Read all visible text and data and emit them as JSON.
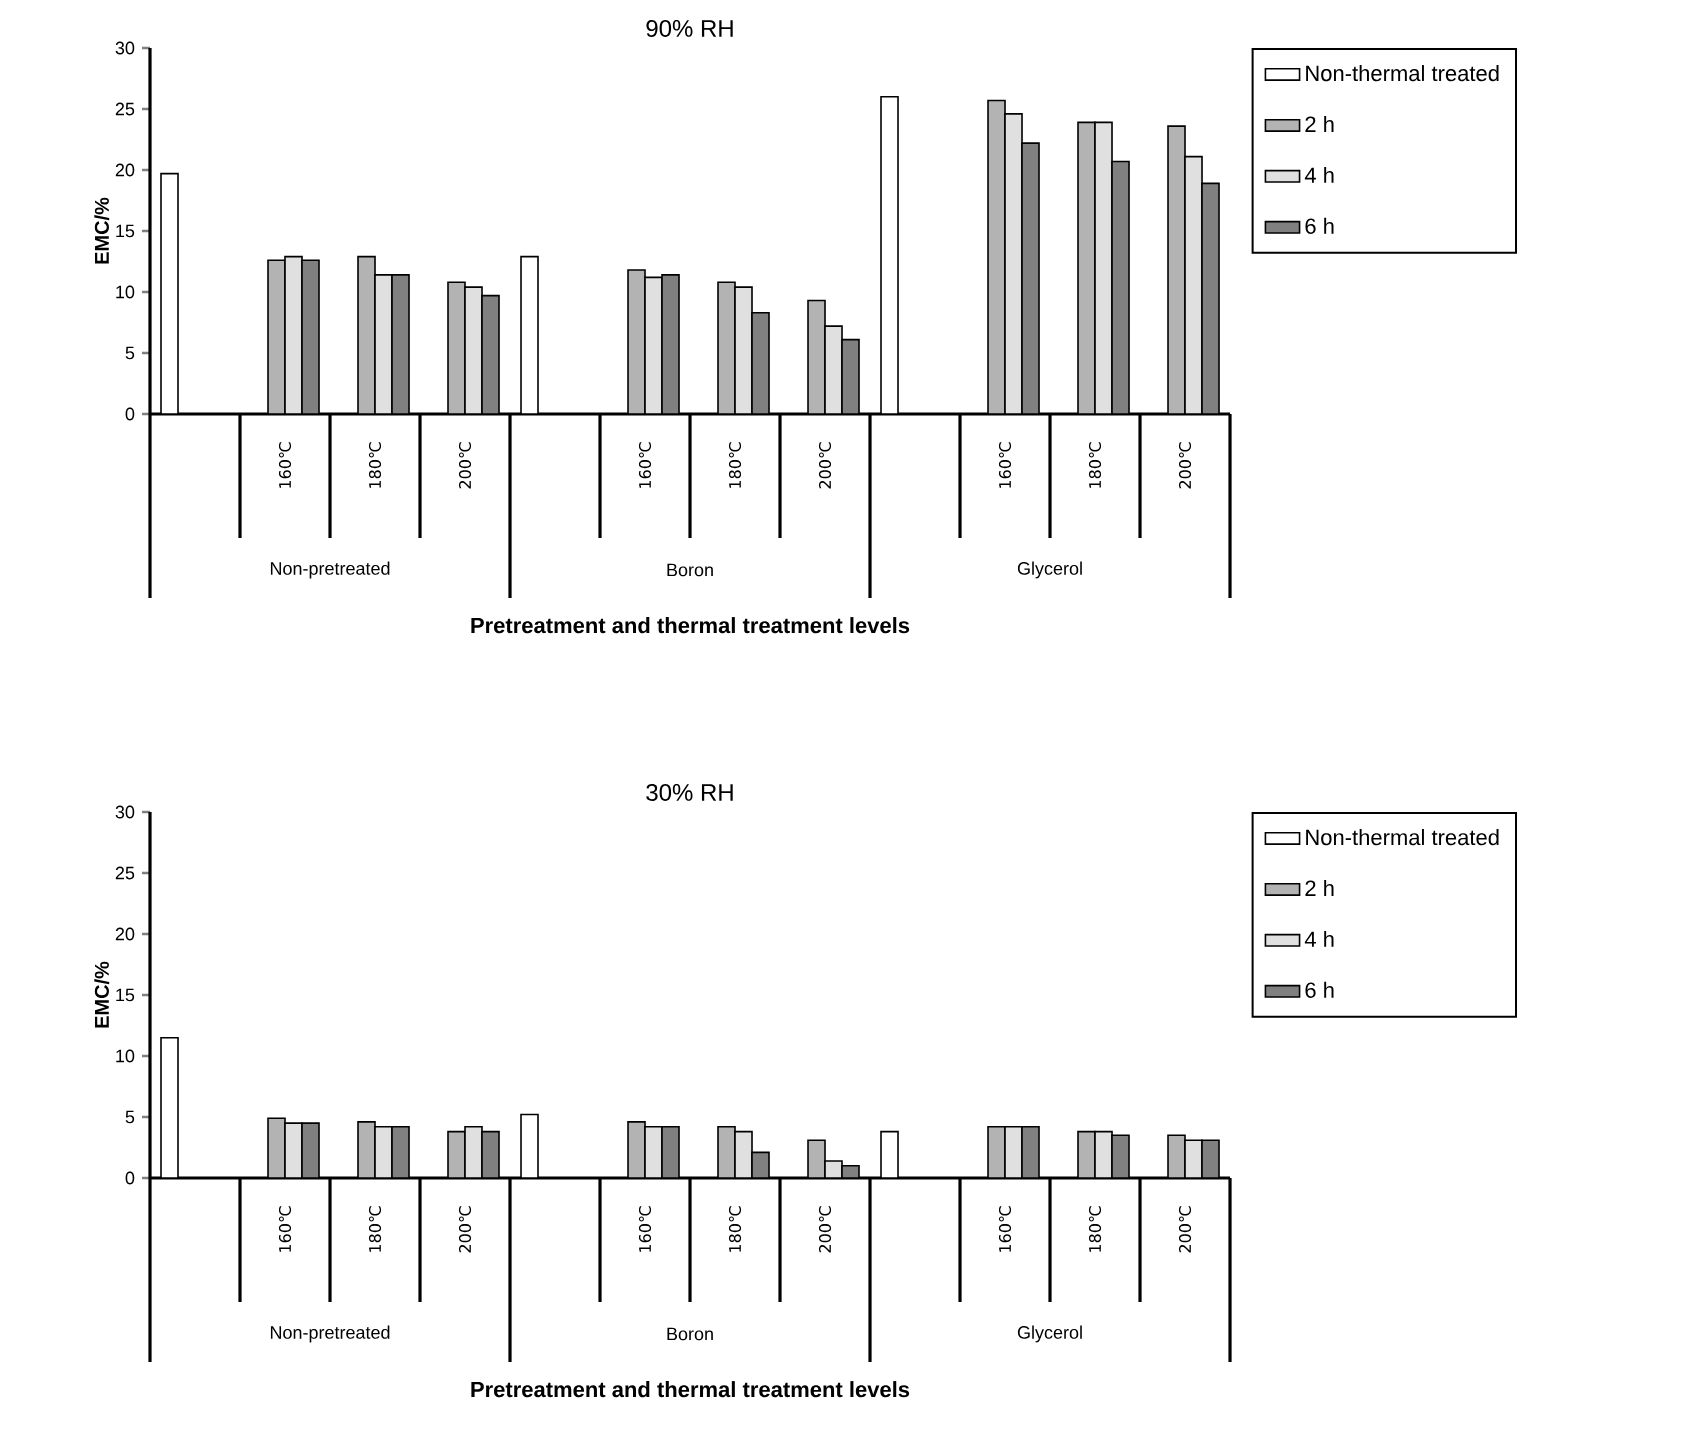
{
  "chart_data": [
    {
      "type": "bar",
      "title": "90% RH",
      "xlabel": "Pretreatment and thermal treatment levels",
      "ylabel": "EMC/%",
      "categories": [
        null,
        "160℃",
        "180℃",
        "200℃",
        null,
        "160℃",
        "180℃",
        "200℃",
        null,
        "160℃",
        "180℃",
        "200℃"
      ],
      "annotations": [
        "Non-pretreated",
        "Boron",
        "Glycerol"
      ],
      "ylim": [
        0,
        30
      ],
      "yticks": [
        0,
        5,
        10,
        15,
        20,
        25,
        30
      ],
      "legend": "right",
      "series": [
        {
          "name": "Non-thermal treated",
          "color": "#ffffff",
          "values": [
            19.7,
            null,
            null,
            null,
            12.9,
            null,
            null,
            null,
            26.0,
            null,
            null,
            null
          ]
        },
        {
          "name": "2 h",
          "color": "#b3b3b3",
          "values": [
            null,
            12.6,
            12.9,
            10.8,
            null,
            11.8,
            10.8,
            9.3,
            null,
            25.7,
            23.9,
            23.6
          ]
        },
        {
          "name": "4 h",
          "color": "#e0e0e0",
          "values": [
            null,
            12.9,
            11.4,
            10.4,
            null,
            11.2,
            10.4,
            7.2,
            null,
            24.6,
            23.9,
            21.1
          ]
        },
        {
          "name": "6 h",
          "color": "#808080",
          "values": [
            null,
            12.6,
            11.4,
            9.7,
            null,
            11.4,
            8.3,
            6.1,
            null,
            22.2,
            20.7,
            18.9
          ]
        }
      ]
    },
    {
      "type": "bar",
      "title": "30% RH",
      "xlabel": "Pretreatment and thermal treatment levels",
      "ylabel": "EMC/%",
      "categories": [
        null,
        "160℃",
        "180℃",
        "200℃",
        null,
        "160℃",
        "180℃",
        "200℃",
        null,
        "160℃",
        "180℃",
        "200℃"
      ],
      "annotations": [
        "Non-pretreated",
        "Boron",
        "Glycerol"
      ],
      "ylim": [
        0,
        30
      ],
      "yticks": [
        0,
        5,
        10,
        15,
        20,
        25,
        30
      ],
      "legend": "right",
      "series": [
        {
          "name": "Non-thermal treated",
          "color": "#ffffff",
          "values": [
            11.5,
            null,
            null,
            null,
            5.2,
            null,
            null,
            null,
            3.8,
            null,
            null,
            null
          ]
        },
        {
          "name": "2 h",
          "color": "#b3b3b3",
          "values": [
            null,
            4.9,
            4.6,
            3.8,
            null,
            4.6,
            4.2,
            3.1,
            null,
            4.2,
            3.8,
            3.5
          ]
        },
        {
          "name": "4 h",
          "color": "#e0e0e0",
          "values": [
            null,
            4.5,
            4.2,
            4.2,
            null,
            4.2,
            3.8,
            1.4,
            null,
            4.2,
            3.8,
            3.1
          ]
        },
        {
          "name": "6 h",
          "color": "#808080",
          "values": [
            null,
            4.5,
            4.2,
            3.8,
            null,
            4.2,
            2.1,
            1.0,
            null,
            4.2,
            3.5,
            3.1
          ]
        }
      ]
    }
  ]
}
